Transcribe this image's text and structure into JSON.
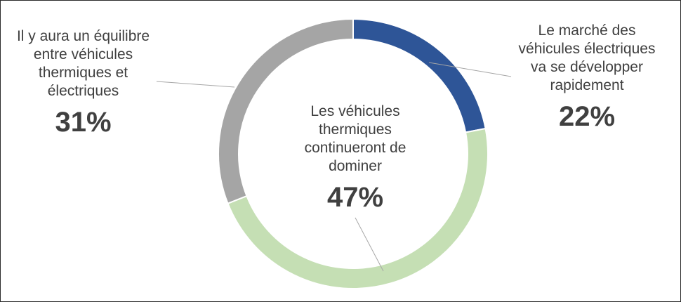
{
  "chart_data": {
    "type": "pie",
    "variant": "donut",
    "start_angle_deg": 0,
    "direction": "clockwise",
    "slices": [
      {
        "key": "electric",
        "label": "Le marché des\nvéhicules électriques\nva se développer\nrapidement",
        "value": 22,
        "display": "22%",
        "color": "#2E5597"
      },
      {
        "key": "thermal",
        "label": "Les véhicules\nthermiques\ncontinueront de\ndominer",
        "value": 47,
        "display": "47%",
        "color": "#C5DFB4"
      },
      {
        "key": "balance",
        "label": "Il y aura un équilibre\nentre véhicules\nthermiques et\nélectriques",
        "value": 31,
        "display": "31%",
        "color": "#A5A5A5"
      }
    ]
  }
}
